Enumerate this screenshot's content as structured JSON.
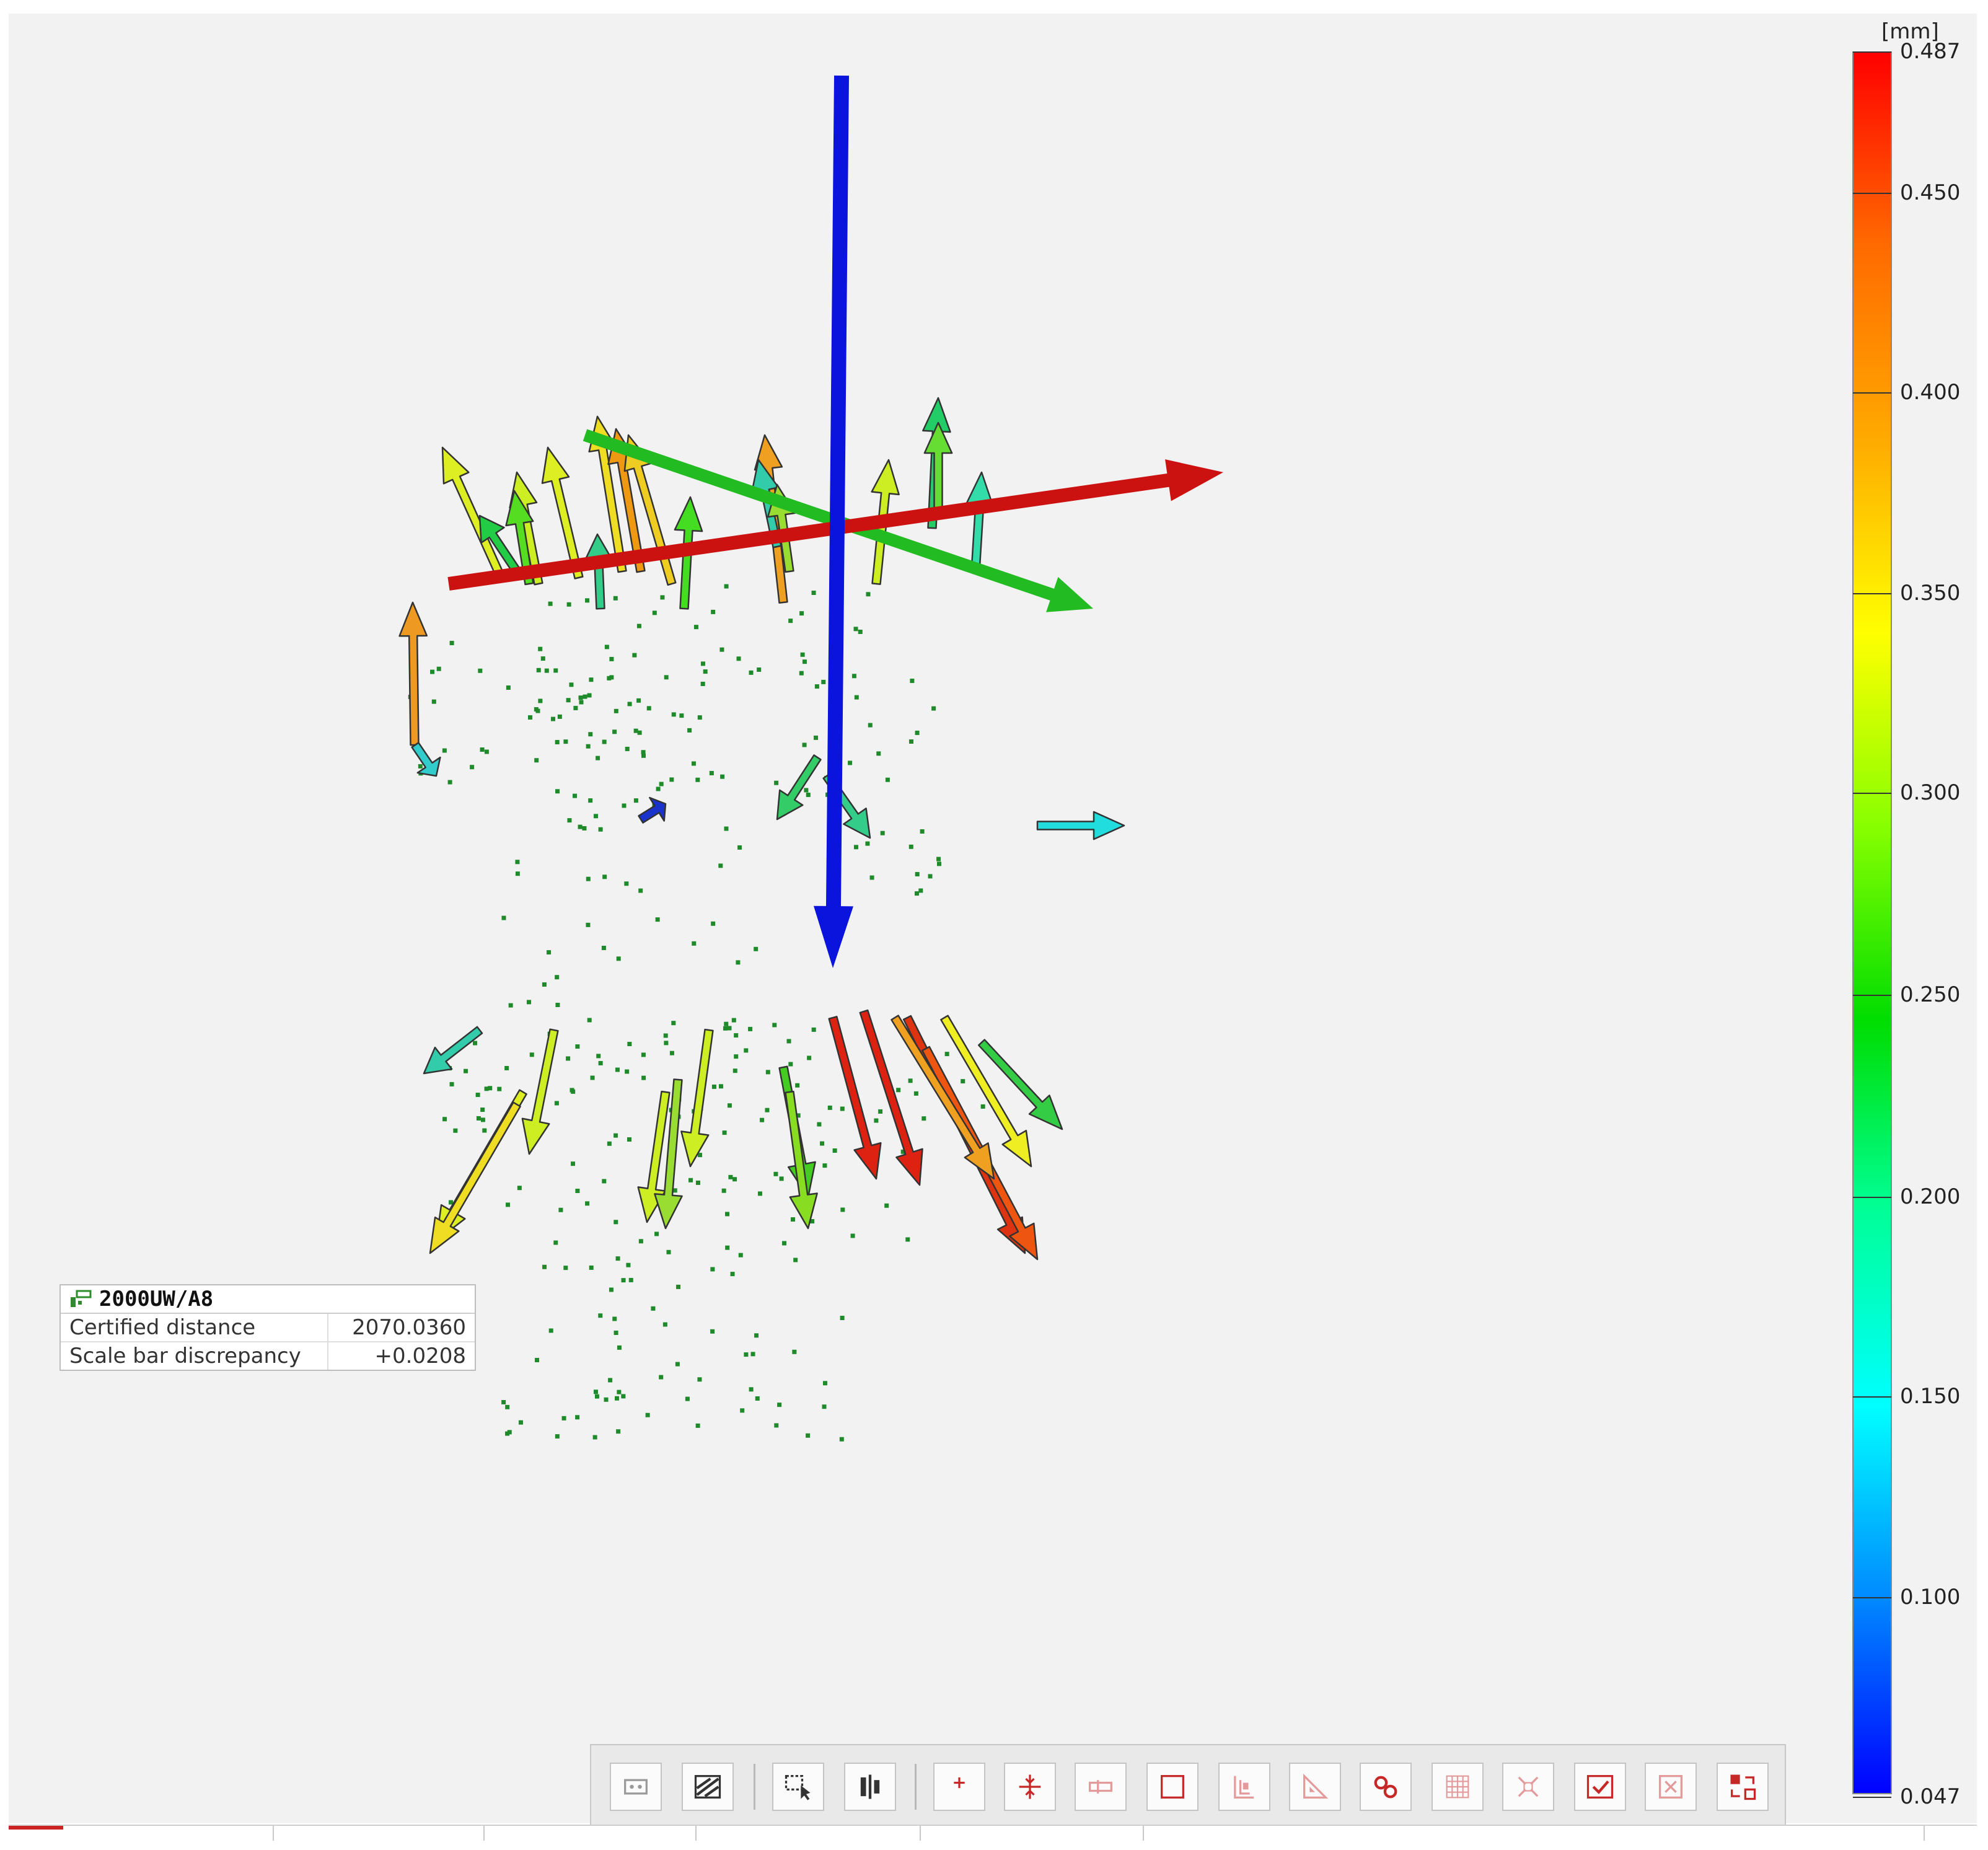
{
  "colorbar": {
    "unit": "[mm]",
    "ticks": [
      "0.487",
      "0.450",
      "0.400",
      "0.350",
      "0.300",
      "0.250",
      "0.200",
      "0.150",
      "0.100",
      "0.047"
    ],
    "gradient_stops": [
      "#ff0000",
      "#ff6a00",
      "#ffaa00",
      "#ffff00",
      "#88ff00",
      "#00dd00",
      "#00ff99",
      "#00ffff",
      "#0088ff",
      "#0000ff"
    ]
  },
  "axes": {
    "x_color": "#cc1111",
    "y_color": "#22bb22",
    "z_color": "#0a14dd"
  },
  "scalebar_info": {
    "name": "2000UW/A8",
    "rows": [
      {
        "label": "Certified distance",
        "value": "2070.0360"
      },
      {
        "label": "Scale bar discrepancy",
        "value": "+0.0208"
      }
    ]
  },
  "toolbar": {
    "buttons": [
      {
        "name": "view-2d-icon",
        "enabled": false
      },
      {
        "name": "hatch-toggle-icon",
        "enabled": true
      },
      {
        "name": "select-region-icon",
        "enabled": true
      },
      {
        "name": "align-columns-icon",
        "enabled": true
      },
      {
        "name": "point-add-icon",
        "enabled": true
      },
      {
        "name": "point-split-icon",
        "enabled": true
      },
      {
        "name": "bar-insert-icon",
        "enabled": false
      },
      {
        "name": "frame-square-icon",
        "enabled": true
      },
      {
        "name": "bracket-frame-icon",
        "enabled": false
      },
      {
        "name": "angle-measure-icon",
        "enabled": false
      },
      {
        "name": "link-icon",
        "enabled": true
      },
      {
        "name": "grid-icon",
        "enabled": false
      },
      {
        "name": "expand-icon",
        "enabled": false
      },
      {
        "name": "check-frame-icon",
        "enabled": true
      },
      {
        "name": "close-frame-icon",
        "enabled": false
      },
      {
        "name": "swap-icon",
        "enabled": true
      }
    ]
  }
}
